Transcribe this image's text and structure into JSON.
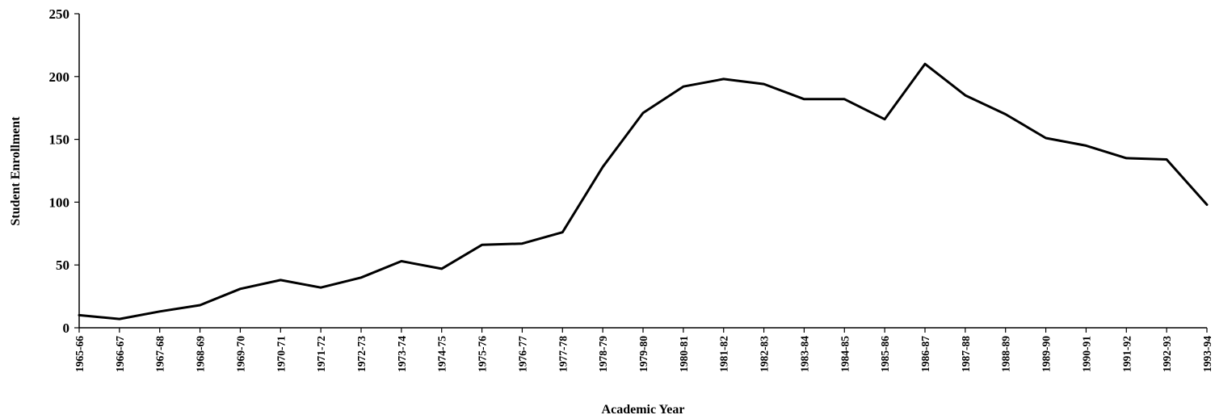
{
  "chart_data": {
    "type": "line",
    "title": "",
    "xlabel": "Academic Year",
    "ylabel": "Student Enrollment",
    "ylim": [
      0,
      250
    ],
    "yticks": [
      0,
      50,
      100,
      150,
      200,
      250
    ],
    "grid": false,
    "legend": "none",
    "line_color": "#000000",
    "categories": [
      "1965-66",
      "1966-67",
      "1967-68",
      "1968-69",
      "1969-70",
      "1970-71",
      "1971-72",
      "1972-73",
      "1973-74",
      "1974-75",
      "1975-76",
      "1976-77",
      "1977-78",
      "1978-79",
      "1979-80",
      "1980-81",
      "1981-82",
      "1982-83",
      "1983-84",
      "1984-85",
      "1985-86",
      "1986-87",
      "1987-88",
      "1988-89",
      "1989-90",
      "1990-91",
      "1991-92",
      "1992-93",
      "1993-94"
    ],
    "series": [
      {
        "values": [
          10,
          7,
          13,
          18,
          31,
          38,
          32,
          40,
          53,
          47,
          66,
          67,
          76,
          128,
          171,
          192,
          198,
          194,
          182,
          182,
          166,
          210,
          185,
          170,
          151,
          145,
          135,
          134,
          98
        ]
      }
    ]
  }
}
